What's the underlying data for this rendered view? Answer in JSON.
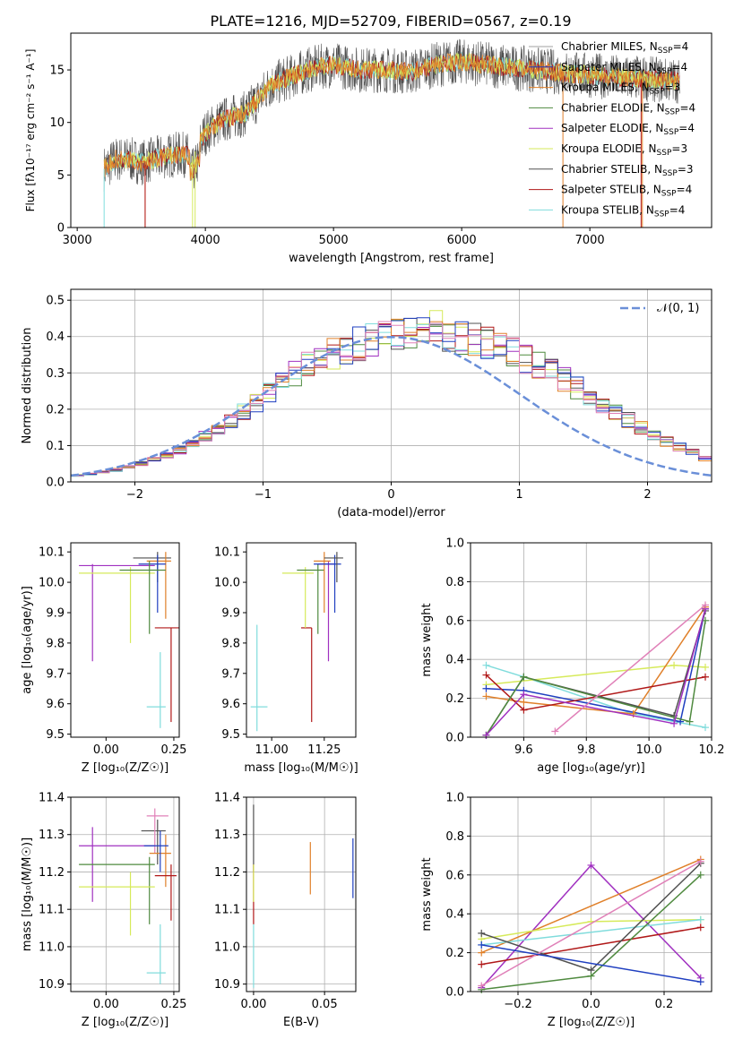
{
  "figure": {
    "title": "PLATE=1216, MJD=52709, FIBERID=0567, z=0.19"
  },
  "colors": {
    "c_miles": "#a0a0a0",
    "s_miles": "#1f3fc0",
    "k_miles": "#e0802a",
    "c_elodie": "#4f8a3f",
    "s_elodie": "#a030c0",
    "k_elodie": "#d6ea5a",
    "c_stelib": "#505050",
    "s_stelib": "#b01818",
    "k_stelib": "#80dcdc",
    "normal": "#6a8fd8"
  },
  "chart_data": [
    {
      "id": "spectrum",
      "type": "line",
      "xlabel": "wavelength [Angstrom, rest frame]",
      "ylabel": "Flux [fλ10⁻¹⁷ erg cm⁻² s⁻¹ A⁻¹]",
      "xlim": [
        2950,
        7950
      ],
      "ylim": [
        0,
        18.5
      ],
      "xticks": [
        "3000",
        "4000",
        "5000",
        "6000",
        "7000"
      ],
      "yticks": [
        "0",
        "5",
        "10",
        "15"
      ],
      "legend": [
        "Chabrier MILES, N_SSP=4",
        "Salpeter MILES, N_SSP=4",
        "Kroupa MILES, N_SSP=3",
        "Chabrier ELODIE, N_SSP=4",
        "Salpeter ELODIE, N_SSP=4",
        "Kroupa ELODIE, N_SSP=3",
        "Chabrier STELIB, N_SSP=3",
        "Salpeter STELIB, N_SSP=4",
        "Kroupa STELIB, N_SSP=4"
      ],
      "legend_ssp": [
        "4",
        "4",
        "3",
        "4",
        "4",
        "3",
        "3",
        "4",
        "4"
      ],
      "legend_colors": [
        "c_miles",
        "s_miles",
        "k_miles",
        "c_elodie",
        "s_elodie",
        "k_elodie",
        "c_stelib",
        "s_stelib",
        "k_stelib"
      ],
      "continuum_x": [
        3200,
        3300,
        3400,
        3500,
        3600,
        3700,
        3800,
        3900,
        4000,
        4100,
        4200,
        4300,
        4400,
        4500,
        4600,
        4700,
        4800,
        4900,
        5000,
        5200,
        5400,
        5600,
        5800,
        6000,
        6200,
        6400,
        6600,
        6800,
        7000,
        7200,
        7400,
        7600
      ],
      "continuum_y": [
        5.5,
        6.5,
        6.5,
        6.2,
        6.5,
        6.8,
        7.0,
        6.8,
        9.0,
        10.0,
        10.5,
        10.8,
        12.0,
        13.5,
        14.0,
        14.5,
        15.0,
        15.3,
        15.5,
        15.0,
        15.0,
        14.8,
        15.5,
        15.8,
        15.5,
        15.2,
        15.0,
        14.7,
        14.5,
        14.3,
        14.2,
        14.0
      ]
    },
    {
      "id": "residuals",
      "type": "bar",
      "xlabel": "(data-model)/error",
      "ylabel": "Normed distribution",
      "xlim": [
        -2.5,
        2.5
      ],
      "ylim": [
        0,
        0.53
      ],
      "xticks": [
        "−2",
        "−1",
        "0",
        "1",
        "2"
      ],
      "yticks": [
        "0.0",
        "0.1",
        "0.2",
        "0.3",
        "0.4",
        "0.5"
      ],
      "legend": "𝒩(0, 1)",
      "bins_start": -2.5,
      "bin_width": 0.1,
      "baseline": [
        0.018,
        0.022,
        0.027,
        0.033,
        0.04,
        0.05,
        0.06,
        0.073,
        0.088,
        0.105,
        0.125,
        0.145,
        0.17,
        0.195,
        0.22,
        0.245,
        0.27,
        0.295,
        0.32,
        0.34,
        0.355,
        0.37,
        0.38,
        0.39,
        0.4,
        0.415,
        0.42,
        0.42,
        0.42,
        0.41,
        0.4,
        0.39,
        0.38,
        0.37,
        0.355,
        0.34,
        0.32,
        0.3,
        0.28,
        0.26,
        0.235,
        0.21,
        0.19,
        0.17,
        0.15,
        0.13,
        0.11,
        0.095,
        0.08,
        0.065
      ]
    },
    {
      "id": "z-age",
      "type": "scatter",
      "xlabel": "Z [log₁₀(Z/Z☉)]",
      "ylabel": "age [log₁₀(age/yr)]",
      "xlim": [
        -0.13,
        0.27
      ],
      "ylim": [
        9.49,
        10.13
      ],
      "xticks": [
        "0.00",
        "0.25"
      ],
      "yticks": [
        "9.5",
        "9.6",
        "9.7",
        "9.8",
        "9.9",
        "10.0",
        "10.1"
      ],
      "points": [
        {
          "c": "s_elodie",
          "x": -0.05,
          "xe": [
            -0.1,
            0.18
          ],
          "y": 10.055,
          "ye": [
            9.74,
            10.06
          ]
        },
        {
          "c": "c_stelib",
          "x": 0.19,
          "xe": [
            0.1,
            0.24
          ],
          "y": 10.08,
          "ye": [
            10.0,
            10.1
          ]
        },
        {
          "c": "k_miles",
          "x": 0.22,
          "xe": [
            0.15,
            0.24
          ],
          "y": 10.07,
          "ye": [
            9.88,
            10.1
          ]
        },
        {
          "c": "s_miles",
          "x": 0.19,
          "xe": [
            0.12,
            0.22
          ],
          "y": 10.06,
          "ye": [
            9.9,
            10.09
          ]
        },
        {
          "c": "k_elodie",
          "x": 0.09,
          "xe": [
            -0.1,
            0.18
          ],
          "y": 10.03,
          "ye": [
            9.8,
            10.05
          ]
        },
        {
          "c": "c_elodie",
          "x": 0.16,
          "xe": [
            0.05,
            0.22
          ],
          "y": 10.04,
          "ye": [
            9.83,
            10.07
          ]
        },
        {
          "c": "s_stelib",
          "x": 0.24,
          "xe": [
            0.18,
            0.27
          ],
          "y": 9.85,
          "ye": [
            9.54,
            9.85
          ]
        },
        {
          "c": "k_stelib",
          "x": 0.2,
          "xe": [
            0.15,
            0.22
          ],
          "y": 9.59,
          "ye": [
            9.52,
            9.77
          ]
        }
      ]
    },
    {
      "id": "mass-age",
      "type": "scatter",
      "xlabel": "mass [log₁₀(M/M☉)]",
      "ylabel": "",
      "xlim": [
        10.88,
        11.4
      ],
      "ylim": [
        9.49,
        10.13
      ],
      "xticks": [
        "11.00",
        "11.25"
      ],
      "yticks": [
        "9.5",
        "9.6",
        "9.7",
        "9.8",
        "9.9",
        "10.0",
        "10.1"
      ],
      "points": [
        {
          "c": "k_stelib",
          "x": 10.93,
          "xe": [
            10.9,
            10.98
          ],
          "y": 9.59,
          "ye": [
            9.51,
            9.86
          ]
        },
        {
          "c": "s_stelib",
          "x": 11.19,
          "xe": [
            11.14,
            11.19
          ],
          "y": 9.85,
          "ye": [
            9.54,
            9.85
          ]
        },
        {
          "c": "k_elodie",
          "x": 11.16,
          "xe": [
            11.05,
            11.2
          ],
          "y": 10.03,
          "ye": [
            9.85,
            10.05
          ]
        },
        {
          "c": "c_elodie",
          "x": 11.22,
          "xe": [
            11.12,
            11.25
          ],
          "y": 10.04,
          "ye": [
            9.83,
            10.06
          ]
        },
        {
          "c": "s_elodie",
          "x": 11.27,
          "xe": [
            11.22,
            11.3
          ],
          "y": 10.06,
          "ye": [
            9.74,
            10.07
          ]
        },
        {
          "c": "k_miles",
          "x": 11.25,
          "xe": [
            11.2,
            11.28
          ],
          "y": 10.07,
          "ye": [
            9.9,
            10.1
          ]
        },
        {
          "c": "s_miles",
          "x": 11.3,
          "xe": [
            11.2,
            11.33
          ],
          "y": 10.06,
          "ye": [
            9.9,
            10.09
          ]
        },
        {
          "c": "c_stelib",
          "x": 11.31,
          "xe": [
            11.25,
            11.34
          ],
          "y": 10.08,
          "ye": [
            10.0,
            10.1
          ]
        }
      ]
    },
    {
      "id": "age-weight",
      "type": "line",
      "xlabel": "age [log₁₀(age/yr)]",
      "ylabel": "mass weight",
      "xlim": [
        9.43,
        10.2
      ],
      "ylim": [
        0,
        1.0
      ],
      "xticks": [
        "9.6",
        "9.8",
        "10.0",
        "10.2"
      ],
      "yticks": [
        "0.0",
        "0.2",
        "0.4",
        "0.6",
        "0.8",
        "1.0"
      ],
      "series": [
        {
          "c": "k_stelib",
          "x": [
            9.48,
            9.6,
            9.95,
            10.18
          ],
          "y": [
            0.37,
            0.31,
            0.12,
            0.05
          ]
        },
        {
          "c": "k_elodie",
          "x": [
            9.48,
            10.08,
            10.18
          ],
          "y": [
            0.27,
            0.37,
            0.36
          ]
        },
        {
          "c": "s_miles",
          "x": [
            9.48,
            9.6,
            10.1,
            10.18
          ],
          "y": [
            0.25,
            0.24,
            0.08,
            0.66
          ]
        },
        {
          "c": "k_miles",
          "x": [
            9.48,
            9.6,
            9.95,
            10.18
          ],
          "y": [
            0.21,
            0.18,
            0.12,
            0.67
          ]
        },
        {
          "c": "s_stelib",
          "x": [
            9.48,
            9.6,
            10.18
          ],
          "y": [
            0.32,
            0.14,
            0.31
          ]
        },
        {
          "c": "c_stelib",
          "x": [
            9.48,
            9.6,
            10.08,
            10.18
          ],
          "y": [
            0.01,
            0.31,
            0.11,
            0.65
          ]
        },
        {
          "c": "c_elodie",
          "x": [
            9.48,
            9.6,
            10.13,
            10.18
          ],
          "y": [
            0.01,
            0.31,
            0.08,
            0.6
          ]
        },
        {
          "c": "s_elodie",
          "x": [
            9.48,
            9.6,
            10.08,
            10.18
          ],
          "y": [
            0.01,
            0.22,
            0.07,
            0.66
          ]
        },
        {
          "c": "pink",
          "x": [
            9.7,
            10.18
          ],
          "y": [
            0.03,
            0.68
          ]
        }
      ]
    },
    {
      "id": "z-mass",
      "type": "scatter",
      "xlabel": "Z [log₁₀(Z/Z☉)]",
      "ylabel": "mass [log₁₀(M/M☉)]",
      "xlim": [
        -0.13,
        0.27
      ],
      "ylim": [
        10.88,
        11.4
      ],
      "xticks": [
        "0.00",
        "0.25"
      ],
      "yticks": [
        "10.9",
        "11.0",
        "11.1",
        "11.2",
        "11.3",
        "11.4"
      ],
      "points": [
        {
          "c": "s_elodie",
          "x": -0.05,
          "xe": [
            -0.1,
            0.18
          ],
          "y": 11.27,
          "ye": [
            11.12,
            11.32
          ]
        },
        {
          "c": "c_stelib",
          "x": 0.19,
          "xe": [
            0.13,
            0.22
          ],
          "y": 11.31,
          "ye": [
            11.22,
            11.34
          ]
        },
        {
          "c": "pink",
          "x": 0.18,
          "xe": [
            0.15,
            0.23
          ],
          "y": 11.35,
          "ye": [
            11.25,
            11.37
          ]
        },
        {
          "c": "k_miles",
          "x": 0.22,
          "xe": [
            0.16,
            0.24
          ],
          "y": 11.25,
          "ye": [
            11.16,
            11.3
          ]
        },
        {
          "c": "s_miles",
          "x": 0.2,
          "xe": [
            0.14,
            0.23
          ],
          "y": 11.27,
          "ye": [
            11.2,
            11.31
          ]
        },
        {
          "c": "c_elodie",
          "x": 0.16,
          "xe": [
            -0.1,
            0.18
          ],
          "y": 11.22,
          "ye": [
            11.06,
            11.24
          ]
        },
        {
          "c": "k_elodie",
          "x": 0.09,
          "xe": [
            -0.1,
            0.18
          ],
          "y": 11.16,
          "ye": [
            11.03,
            11.2
          ]
        },
        {
          "c": "s_stelib",
          "x": 0.24,
          "xe": [
            0.18,
            0.26
          ],
          "y": 11.19,
          "ye": [
            11.07,
            11.22
          ]
        },
        {
          "c": "k_stelib",
          "x": 0.2,
          "xe": [
            0.15,
            0.22
          ],
          "y": 10.93,
          "ye": [
            10.9,
            11.06
          ]
        }
      ]
    },
    {
      "id": "ebv-mass",
      "type": "scatter",
      "xlabel": "E(B-V)",
      "ylabel": "",
      "xlim": [
        -0.005,
        0.072
      ],
      "ylim": [
        10.88,
        11.4
      ],
      "xticks": [
        "0.00",
        "0.05"
      ],
      "yticks": [
        "10.9",
        "11.0",
        "11.1",
        "11.2",
        "11.3",
        "11.4"
      ],
      "points": [
        {
          "c": "c_stelib",
          "x": 0.0,
          "xe": [
            0,
            0
          ],
          "y": 11.31,
          "ye": [
            11.2,
            11.38
          ]
        },
        {
          "c": "s_stelib",
          "x": 0.0,
          "xe": [
            0,
            0
          ],
          "y": 11.15,
          "ye": [
            11.06,
            11.22
          ]
        },
        {
          "c": "k_stelib",
          "x": 0.0,
          "xe": [
            0,
            0
          ],
          "y": 10.95,
          "ye": [
            10.89,
            11.06
          ]
        },
        {
          "c": "k_elodie",
          "x": 0.0,
          "xe": [
            0,
            0
          ],
          "y": 11.18,
          "ye": [
            11.12,
            11.22
          ]
        },
        {
          "c": "k_miles",
          "x": 0.04,
          "xe": [
            0.04,
            0.04
          ],
          "y": 11.21,
          "ye": [
            11.14,
            11.28
          ]
        },
        {
          "c": "s_miles",
          "x": 0.07,
          "xe": [
            0.07,
            0.07
          ],
          "y": 11.21,
          "ye": [
            11.13,
            11.29
          ]
        }
      ]
    },
    {
      "id": "z-weight",
      "type": "line",
      "xlabel": "Z [log₁₀(Z/Z☉)]",
      "ylabel": "mass weight",
      "xlim": [
        -0.33,
        0.33
      ],
      "ylim": [
        0,
        1.0
      ],
      "xticks": [
        "−0.2",
        "0.0",
        "0.2"
      ],
      "yticks": [
        "0.0",
        "0.2",
        "0.4",
        "0.6",
        "0.8",
        "1.0"
      ],
      "series": [
        {
          "c": "s_elodie",
          "x": [
            -0.3,
            0.0,
            0.3
          ],
          "y": [
            0.02,
            0.65,
            0.07
          ]
        },
        {
          "c": "k_miles",
          "x": [
            -0.3,
            0.3
          ],
          "y": [
            0.2,
            0.68
          ]
        },
        {
          "c": "k_elodie",
          "x": [
            -0.3,
            0.0,
            0.3
          ],
          "y": [
            0.27,
            0.36,
            0.37
          ]
        },
        {
          "c": "k_stelib",
          "x": [
            -0.3,
            0.3
          ],
          "y": [
            0.24,
            0.37
          ]
        },
        {
          "c": "s_stelib",
          "x": [
            -0.3,
            0.3
          ],
          "y": [
            0.14,
            0.33
          ]
        },
        {
          "c": "c_stelib",
          "x": [
            -0.3,
            0.0,
            0.3
          ],
          "y": [
            0.3,
            0.11,
            0.66
          ]
        },
        {
          "c": "c_elodie",
          "x": [
            -0.3,
            0.0,
            0.3
          ],
          "y": [
            0.01,
            0.08,
            0.6
          ]
        },
        {
          "c": "pink",
          "x": [
            -0.3,
            0.3
          ],
          "y": [
            0.03,
            0.67
          ]
        },
        {
          "c": "s_miles",
          "x": [
            -0.3,
            0.3
          ],
          "y": [
            0.24,
            0.05
          ]
        }
      ]
    }
  ]
}
